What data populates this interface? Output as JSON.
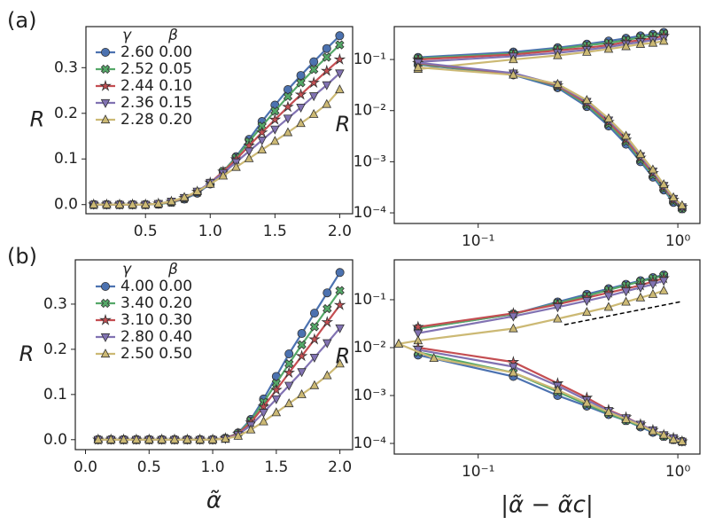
{
  "panel_labels": [
    "(a)",
    "(b)"
  ],
  "chart_data": [
    {
      "type": "line",
      "y_label": "R",
      "legend_headers": [
        "γ",
        "β"
      ],
      "x": [
        0.1,
        0.2,
        0.3,
        0.4,
        0.5,
        0.6,
        0.7,
        0.8,
        0.9,
        1.0,
        1.1,
        1.2,
        1.3,
        1.4,
        1.5,
        1.6,
        1.7,
        1.8,
        1.9,
        2.0
      ],
      "xlim": [
        0.04,
        2.1
      ],
      "ylim": [
        -0.02,
        0.39
      ],
      "xticks": [
        0.5,
        {
          "value": 1,
          "label": "1.0"
        },
        1.5,
        {
          "value": 2,
          "label": "2.0"
        }
      ],
      "yticks": [
        {
          "value": 0,
          "label": "0.0"
        },
        0.1,
        0.2,
        0.3
      ],
      "series": [
        {
          "name": "2.60 0.00",
          "color": "#4c72b0",
          "marker": "o",
          "values": [
            0,
            0,
            0,
            0,
            0,
            0.001,
            0.005,
            0.012,
            0.025,
            0.045,
            0.072,
            0.105,
            0.143,
            0.182,
            0.218,
            0.252,
            0.283,
            0.313,
            0.342,
            0.37
          ]
        },
        {
          "name": "2.52 0.05",
          "color": "#55a868",
          "marker": "X",
          "values": [
            0,
            0,
            0,
            0,
            0,
            0.001,
            0.005,
            0.013,
            0.027,
            0.047,
            0.073,
            0.103,
            0.138,
            0.172,
            0.205,
            0.237,
            0.267,
            0.296,
            0.323,
            0.35
          ]
        },
        {
          "name": "2.44 0.10",
          "color": "#c44e52",
          "marker": "*",
          "values": [
            0,
            0,
            0,
            0,
            0,
            0.002,
            0.006,
            0.014,
            0.028,
            0.048,
            0.072,
            0.099,
            0.129,
            0.158,
            0.186,
            0.214,
            0.241,
            0.267,
            0.293,
            0.318
          ]
        },
        {
          "name": "2.36 0.15",
          "color": "#8172b2",
          "marker": "v",
          "values": [
            0,
            0,
            0,
            0,
            0,
            0.002,
            0.007,
            0.015,
            0.029,
            0.048,
            0.069,
            0.093,
            0.117,
            0.141,
            0.165,
            0.189,
            0.213,
            0.238,
            0.262,
            0.288
          ]
        },
        {
          "name": "2.28 0.20",
          "color": "#ccb974",
          "marker": "^",
          "values": [
            0,
            0,
            0,
            0,
            0,
            0.002,
            0.007,
            0.016,
            0.029,
            0.045,
            0.063,
            0.082,
            0.101,
            0.12,
            0.139,
            0.158,
            0.178,
            0.198,
            0.22,
            0.252
          ]
        }
      ]
    },
    {
      "type": "line",
      "y_label": "R",
      "xscale": "log",
      "yscale": "log",
      "xlim": [
        0.038,
        1.29
      ],
      "ylim": [
        6.2e-05,
        0.44
      ],
      "xticks": [
        {
          "value": 0.1,
          "label": "10⁻¹"
        },
        {
          "value": 1,
          "label": "10⁰"
        }
      ],
      "yticks": [
        {
          "value": 0.0001,
          "label": "10⁻⁴"
        },
        {
          "value": 0.001,
          "label": "10⁻³"
        },
        {
          "value": 0.01,
          "label": "10⁻²"
        },
        {
          "value": 0.1,
          "label": "10⁻¹"
        }
      ],
      "series": [
        {
          "color": "#4c72b0",
          "marker": "o",
          "x": [
            0.05,
            0.15,
            0.25,
            0.35,
            0.45,
            0.55,
            0.65,
            0.75,
            0.85
          ],
          "values": [
            0.11,
            0.14,
            0.17,
            0.2,
            0.23,
            0.26,
            0.29,
            0.31,
            0.34
          ]
        },
        {
          "color": "#55a868",
          "marker": "X",
          "x": [
            0.05,
            0.15,
            0.25,
            0.35,
            0.45,
            0.55,
            0.65,
            0.75,
            0.85
          ],
          "values": [
            0.105,
            0.13,
            0.16,
            0.19,
            0.21,
            0.24,
            0.27,
            0.29,
            0.32
          ]
        },
        {
          "color": "#c44e52",
          "marker": "*",
          "x": [
            0.05,
            0.15,
            0.25,
            0.35,
            0.45,
            0.55,
            0.65,
            0.75,
            0.85
          ],
          "values": [
            0.1,
            0.125,
            0.15,
            0.17,
            0.19,
            0.22,
            0.24,
            0.26,
            0.29
          ]
        },
        {
          "color": "#8172b2",
          "marker": "v",
          "x": [
            0.05,
            0.15,
            0.25,
            0.35,
            0.45,
            0.55,
            0.65,
            0.75,
            0.85
          ],
          "values": [
            0.09,
            0.115,
            0.135,
            0.155,
            0.175,
            0.2,
            0.22,
            0.24,
            0.26
          ]
        },
        {
          "color": "#ccb974",
          "marker": "^",
          "x": [
            0.05,
            0.15,
            0.25,
            0.35,
            0.45,
            0.55,
            0.65,
            0.75,
            0.85
          ],
          "values": [
            0.065,
            0.1,
            0.12,
            0.14,
            0.16,
            0.18,
            0.2,
            0.21,
            0.23
          ]
        },
        {
          "color": "#4c72b0",
          "marker": "o",
          "x": [
            0.05,
            0.15,
            0.25,
            0.35,
            0.45,
            0.55,
            0.65,
            0.75,
            0.85,
            0.95,
            1.05
          ],
          "values": [
            0.08,
            0.05,
            0.028,
            0.012,
            0.005,
            0.0022,
            0.001,
            0.0005,
            0.00028,
            0.00016,
            0.00012
          ]
        },
        {
          "color": "#55a868",
          "marker": "X",
          "x": [
            0.05,
            0.15,
            0.25,
            0.35,
            0.45,
            0.55,
            0.65,
            0.75,
            0.85,
            0.95,
            1.05
          ],
          "values": [
            0.082,
            0.052,
            0.03,
            0.013,
            0.0055,
            0.0025,
            0.0011,
            0.00055,
            0.0003,
            0.00017,
            0.00012
          ]
        },
        {
          "color": "#c44e52",
          "marker": "*",
          "x": [
            0.05,
            0.15,
            0.25,
            0.35,
            0.45,
            0.55,
            0.65,
            0.75,
            0.85,
            0.95,
            1.05
          ],
          "values": [
            0.085,
            0.053,
            0.031,
            0.014,
            0.006,
            0.0027,
            0.0012,
            0.0006,
            0.00032,
            0.00018,
            0.00013
          ]
        },
        {
          "color": "#8172b2",
          "marker": "v",
          "x": [
            0.05,
            0.15,
            0.25,
            0.35,
            0.45,
            0.55,
            0.65,
            0.75,
            0.85,
            0.95,
            1.05
          ],
          "values": [
            0.087,
            0.054,
            0.032,
            0.015,
            0.0065,
            0.003,
            0.0013,
            0.00065,
            0.00034,
            0.00019,
            0.00013
          ]
        },
        {
          "color": "#ccb974",
          "marker": "^",
          "x": [
            0.05,
            0.15,
            0.25,
            0.35,
            0.45,
            0.55,
            0.65,
            0.75,
            0.85,
            0.95,
            1.05
          ],
          "values": [
            0.07,
            0.05,
            0.033,
            0.016,
            0.007,
            0.0032,
            0.0014,
            0.0007,
            0.00036,
            0.0002,
            0.00014
          ]
        }
      ]
    },
    {
      "type": "line",
      "y_label": "R",
      "x_label": "α̃",
      "legend_headers": [
        "γ",
        "β"
      ],
      "x": [
        0.1,
        0.2,
        0.3,
        0.4,
        0.5,
        0.6,
        0.7,
        0.8,
        0.9,
        1.0,
        1.1,
        1.2,
        1.3,
        1.4,
        1.5,
        1.6,
        1.7,
        1.8,
        1.9,
        2.0
      ],
      "xlim": [
        -0.08,
        2.1
      ],
      "ylim": [
        -0.022,
        0.398
      ],
      "xticks": [
        {
          "value": 0,
          "label": "0.0"
        },
        0.5,
        {
          "value": 1,
          "label": "1.0"
        },
        1.5,
        {
          "value": 2,
          "label": "2.0"
        }
      ],
      "yticks": [
        {
          "value": 0,
          "label": "0.0"
        },
        0.1,
        0.2,
        0.3
      ],
      "series": [
        {
          "name": "4.00 0.00",
          "color": "#4c72b0",
          "marker": "o",
          "values": [
            0,
            0,
            0,
            0,
            0,
            0,
            0,
            0,
            0,
            0,
            0.003,
            0.015,
            0.045,
            0.09,
            0.14,
            0.19,
            0.235,
            0.28,
            0.325,
            0.37
          ]
        },
        {
          "name": "3.40 0.20",
          "color": "#55a868",
          "marker": "X",
          "values": [
            0,
            0,
            0,
            0,
            0,
            0,
            0,
            0,
            0,
            0,
            0.003,
            0.014,
            0.042,
            0.083,
            0.125,
            0.168,
            0.21,
            0.25,
            0.29,
            0.33
          ]
        },
        {
          "name": "3.10 0.30",
          "color": "#c44e52",
          "marker": "*",
          "values": [
            0,
            0,
            0,
            0,
            0,
            0,
            0,
            0,
            0,
            0,
            0.003,
            0.013,
            0.038,
            0.073,
            0.11,
            0.148,
            0.185,
            0.222,
            0.26,
            0.298
          ]
        },
        {
          "name": "2.80 0.40",
          "color": "#8172b2",
          "marker": "v",
          "values": [
            0,
            0,
            0,
            0,
            0,
            0,
            0,
            0,
            0,
            0,
            0.002,
            0.011,
            0.032,
            0.06,
            0.09,
            0.12,
            0.15,
            0.182,
            0.214,
            0.247
          ]
        },
        {
          "name": "2.50 0.50",
          "color": "#ccb974",
          "marker": "^",
          "values": [
            0,
            0,
            0,
            0,
            0,
            0,
            0,
            0,
            0,
            0,
            0.002,
            0.008,
            0.022,
            0.04,
            0.06,
            0.08,
            0.1,
            0.12,
            0.142,
            0.168
          ]
        }
      ]
    },
    {
      "type": "line",
      "y_label": "R",
      "x_label": "|α̃ − α̃c|",
      "xscale": "log",
      "yscale": "log",
      "xlim": [
        0.038,
        1.29
      ],
      "ylim": [
        6e-05,
        0.68
      ],
      "xticks": [
        {
          "value": 0.1,
          "label": "10⁻¹"
        },
        {
          "value": 1,
          "label": "10⁰"
        }
      ],
      "yticks": [
        {
          "value": 0.0001,
          "label": "10⁻⁴"
        },
        {
          "value": 0.001,
          "label": "10⁻³"
        },
        {
          "value": 0.01,
          "label": "10⁻²"
        },
        {
          "value": 0.1,
          "label": "10⁻¹"
        }
      ],
      "reference_line": {
        "x": [
          0.27,
          1.05
        ],
        "y": [
          0.03,
          0.092
        ],
        "color": "#000000"
      },
      "series": [
        {
          "color": "#4c72b0",
          "marker": "o",
          "x": [
            0.05,
            0.15,
            0.25,
            0.35,
            0.45,
            0.55,
            0.65,
            0.75,
            0.85
          ],
          "values": [
            0.025,
            0.05,
            0.09,
            0.13,
            0.17,
            0.21,
            0.25,
            0.29,
            0.33
          ]
        },
        {
          "color": "#55a868",
          "marker": "X",
          "x": [
            0.05,
            0.15,
            0.25,
            0.35,
            0.45,
            0.55,
            0.65,
            0.75,
            0.85
          ],
          "values": [
            0.025,
            0.05,
            0.085,
            0.12,
            0.16,
            0.2,
            0.24,
            0.28,
            0.32
          ]
        },
        {
          "color": "#c44e52",
          "marker": "*",
          "x": [
            0.05,
            0.15,
            0.25,
            0.35,
            0.45,
            0.55,
            0.65,
            0.75,
            0.85
          ],
          "values": [
            0.027,
            0.052,
            0.08,
            0.11,
            0.14,
            0.17,
            0.2,
            0.24,
            0.28
          ]
        },
        {
          "color": "#8172b2",
          "marker": "v",
          "x": [
            0.05,
            0.15,
            0.25,
            0.35,
            0.45,
            0.55,
            0.65,
            0.75,
            0.85
          ],
          "values": [
            0.02,
            0.045,
            0.07,
            0.095,
            0.12,
            0.15,
            0.18,
            0.21,
            0.25
          ]
        },
        {
          "color": "#ccb974",
          "marker": "^",
          "x": [
            0.04,
            0.05,
            0.15,
            0.25,
            0.35,
            0.45,
            0.55,
            0.65,
            0.75,
            0.85
          ],
          "values": [
            0.012,
            0.014,
            0.025,
            0.04,
            0.055,
            0.07,
            0.09,
            0.11,
            0.13,
            0.155
          ]
        },
        {
          "color": "#4c72b0",
          "marker": "o",
          "x": [
            0.05,
            0.15,
            0.25,
            0.35,
            0.45,
            0.55,
            0.65,
            0.75,
            0.85,
            0.95,
            1.05
          ],
          "values": [
            0.007,
            0.0025,
            0.001,
            0.0006,
            0.0004,
            0.0003,
            0.00022,
            0.00017,
            0.00014,
            0.00012,
            0.00011
          ]
        },
        {
          "color": "#55a868",
          "marker": "X",
          "x": [
            0.05,
            0.15,
            0.25,
            0.35,
            0.45,
            0.55,
            0.65,
            0.75,
            0.85,
            0.95,
            1.05
          ],
          "values": [
            0.008,
            0.003,
            0.0012,
            0.00065,
            0.00042,
            0.0003,
            0.00023,
            0.00018,
            0.00014,
            0.00012,
            0.00011
          ]
        },
        {
          "color": "#c44e52",
          "marker": "*",
          "x": [
            0.05,
            0.15,
            0.25,
            0.35,
            0.45,
            0.55,
            0.65,
            0.75,
            0.85,
            0.95,
            1.05
          ],
          "values": [
            0.01,
            0.005,
            0.0018,
            0.0009,
            0.0005,
            0.00035,
            0.00025,
            0.00019,
            0.00015,
            0.00013,
            0.00011
          ]
        },
        {
          "color": "#8172b2",
          "marker": "v",
          "x": [
            0.05,
            0.15,
            0.25,
            0.35,
            0.45,
            0.55,
            0.65,
            0.75,
            0.85,
            0.95,
            1.05
          ],
          "values": [
            0.009,
            0.004,
            0.0016,
            0.0008,
            0.00048,
            0.00034,
            0.00025,
            0.00019,
            0.00015,
            0.00013,
            0.00011
          ]
        },
        {
          "color": "#ccb974",
          "marker": "^",
          "x": [
            0.04,
            0.06,
            0.15,
            0.25,
            0.35,
            0.45,
            0.55,
            0.65,
            0.75,
            0.85,
            0.95,
            1.05
          ],
          "values": [
            0.012,
            0.006,
            0.003,
            0.0013,
            0.0007,
            0.00045,
            0.00032,
            0.00024,
            0.00018,
            0.00015,
            0.00012,
            0.00011
          ]
        }
      ]
    }
  ]
}
